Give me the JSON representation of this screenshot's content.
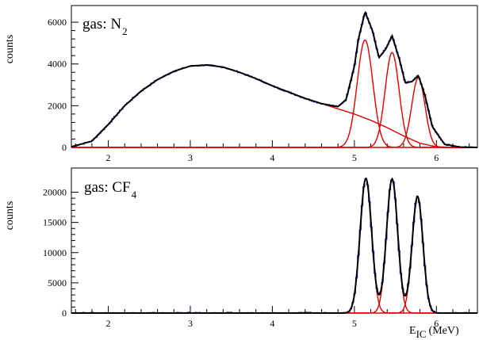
{
  "chart_data": [
    {
      "type": "line",
      "panel": "top",
      "label_main": "gas: N",
      "label_sub": "2",
      "ylabel": "counts",
      "xlabel": "",
      "xlim": [
        1.55,
        6.5
      ],
      "ylim": [
        0,
        6800
      ],
      "x_ticks": [
        2,
        3,
        4,
        5,
        6
      ],
      "y_ticks": [
        0,
        2000,
        4000,
        6000
      ],
      "grid": false,
      "components": [
        {
          "name": "",
          "color": "#dd0000",
          "kind": "broad",
          "x": [
            1.55,
            1.8,
            2.0,
            2.2,
            2.4,
            2.6,
            2.8,
            3.0,
            3.2,
            3.4,
            3.6,
            3.8,
            4.0,
            4.2,
            4.4,
            4.6,
            4.8,
            5.0,
            5.2,
            5.4,
            5.6,
            5.8,
            6.0,
            6.2,
            6.5
          ],
          "y": [
            30,
            300,
            1100,
            2000,
            2700,
            3250,
            3650,
            3900,
            3950,
            3850,
            3600,
            3300,
            2950,
            2650,
            2350,
            2100,
            1850,
            1600,
            1300,
            950,
            550,
            200,
            30,
            0,
            0
          ]
        },
        {
          "name": "",
          "color": "#dd0000",
          "kind": "gauss",
          "mu": 5.13,
          "sigma": 0.095,
          "amp": 5150
        },
        {
          "name": "",
          "color": "#dd0000",
          "kind": "gauss",
          "mu": 5.46,
          "sigma": 0.085,
          "amp": 4550
        },
        {
          "name": "",
          "color": "#dd0000",
          "kind": "gauss",
          "mu": 5.78,
          "sigma": 0.08,
          "amp": 3350
        }
      ],
      "total": {
        "color": "#000000",
        "x": [
          1.55,
          1.8,
          2.0,
          2.2,
          2.4,
          2.6,
          2.8,
          3.0,
          3.2,
          3.4,
          3.6,
          3.8,
          4.0,
          4.2,
          4.4,
          4.6,
          4.8,
          4.9,
          5.0,
          5.05,
          5.13,
          5.22,
          5.3,
          5.38,
          5.46,
          5.55,
          5.62,
          5.7,
          5.78,
          5.86,
          5.95,
          6.1,
          6.3,
          6.5
        ],
        "y": [
          30,
          300,
          1100,
          2000,
          2700,
          3250,
          3650,
          3900,
          3950,
          3850,
          3600,
          3300,
          2950,
          2650,
          2350,
          2100,
          1950,
          2300,
          3900,
          5200,
          6500,
          5600,
          4300,
          4700,
          5350,
          4200,
          3100,
          3150,
          3450,
          2500,
          1000,
          150,
          10,
          0
        ]
      },
      "data_hist_color": "#2222cc"
    },
    {
      "type": "line",
      "panel": "bottom",
      "label_main": "gas: CF",
      "label_sub": "4",
      "ylabel": "counts",
      "xlabel": "E",
      "xlabel_sub": "IC",
      "xlabel_unit": "(MeV)",
      "xlim": [
        1.55,
        6.5
      ],
      "ylim": [
        0,
        24000
      ],
      "x_ticks": [
        2,
        3,
        4,
        5,
        6
      ],
      "y_ticks": [
        0,
        5000,
        10000,
        15000,
        20000
      ],
      "grid": false,
      "components": [
        {
          "name": "",
          "color": "#dd0000",
          "kind": "gauss",
          "mu": 5.14,
          "sigma": 0.07,
          "amp": 22300
        },
        {
          "name": "",
          "color": "#dd0000",
          "kind": "gauss",
          "mu": 5.46,
          "sigma": 0.068,
          "amp": 22200
        },
        {
          "name": "",
          "color": "#dd0000",
          "kind": "gauss",
          "mu": 5.77,
          "sigma": 0.066,
          "amp": 19300
        }
      ],
      "total": {
        "color": "#000000",
        "kind": "sum"
      },
      "data_hist_color": "#2222cc"
    }
  ]
}
